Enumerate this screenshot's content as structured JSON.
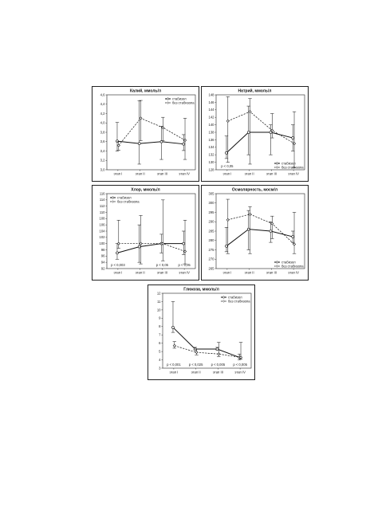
{
  "chart_data": [
    {
      "type": "line",
      "title": "Калий, ммоль/л",
      "categories": [
        "этап I",
        "этап II",
        "этап III",
        "этап IV"
      ],
      "ylim": [
        3.0,
        4.6
      ],
      "yticks": [
        "3,0",
        "3,2",
        "3,4",
        "3,6",
        "3,8",
        "4,0",
        "4,2",
        "4,4",
        "4,6"
      ],
      "legend_position": "top-right",
      "series": [
        {
          "name": "стабизол",
          "style": "solid",
          "marker": "circle",
          "values": [
            3.61,
            3.56,
            3.6,
            3.55
          ],
          "err_lo": [
            3.4,
            3.12,
            3.22,
            3.41
          ],
          "err_hi": [
            4.01,
            4.47,
            3.93,
            3.75
          ]
        },
        {
          "name": "без стабизола",
          "style": "dashed",
          "marker": "diamond",
          "values": [
            3.52,
            4.1,
            3.9,
            3.63
          ],
          "err_lo": [
            3.42,
            3.62,
            3.62,
            3.22
          ],
          "err_hi": [
            3.6,
            4.48,
            4.12,
            4.1
          ]
        }
      ],
      "annotations": []
    },
    {
      "type": "line",
      "title": "Натрий, ммоль/л",
      "categories": [
        "этап I",
        "этап II",
        "этап III",
        "этап IV"
      ],
      "ylim": [
        128,
        148
      ],
      "yticks": [
        "128",
        "130",
        "132",
        "134",
        "136",
        "138",
        "140",
        "142",
        "144",
        "146",
        "148"
      ],
      "legend_position": "bottom-right",
      "series": [
        {
          "name": "стабизол",
          "style": "solid",
          "marker": "circle",
          "values": [
            132.5,
            138,
            138,
            136.5
          ],
          "err_lo": [
            131,
            132,
            132,
            133
          ],
          "err_hi": [
            137,
            145,
            140,
            140
          ]
        },
        {
          "name": "без стабизола",
          "style": "dashed",
          "marker": "diamond",
          "values": [
            141,
            143.5,
            138.5,
            135
          ],
          "err_lo": [
            130,
            129.5,
            136.5,
            128.5
          ],
          "err_hi": [
            147.5,
            147,
            143,
            143.5
          ]
        }
      ],
      "annotations": [
        {
          "text": "p < 0,05",
          "category": 0
        }
      ]
    },
    {
      "type": "line",
      "title": "Хлор, ммоль/л",
      "categories": [
        "этап I",
        "этап II",
        "этап III",
        "этап IV"
      ],
      "ylim": [
        92,
        116
      ],
      "yticks": [
        "92",
        "94",
        "96",
        "98",
        "100",
        "102",
        "104",
        "106",
        "108",
        "110",
        "112",
        "114",
        "116"
      ],
      "legend_position": "top-left",
      "series": [
        {
          "name": "стабизол",
          "style": "solid",
          "marker": "circle",
          "values": [
            97,
            99,
            100,
            100
          ],
          "err_lo": [
            95,
            94,
            97,
            96.5
          ],
          "err_hi": [
            100,
            106,
            103,
            104
          ]
        },
        {
          "name": "без стабизола",
          "style": "dashed",
          "marker": "diamond",
          "values": [
            100,
            100,
            100,
            97.5
          ],
          "err_lo": [
            98.5,
            93.5,
            94.5,
            93.5
          ],
          "err_hi": [
            107.5,
            109,
            114,
            107.5
          ]
        }
      ],
      "annotations": [
        {
          "text": "p < 0,003",
          "category": 0
        },
        {
          "text": "p < 0,05",
          "category": 2
        },
        {
          "text": "p < 0,05",
          "category": 3
        }
      ]
    },
    {
      "type": "line",
      "title": "Осмолярность, мосм/л",
      "categories": [
        "этап I",
        "этап II",
        "этап III",
        "этап IV"
      ],
      "ylim": [
        265,
        305
      ],
      "yticks": [
        "265",
        "270",
        "275",
        "280",
        "285",
        "290",
        "295",
        "300",
        "305"
      ],
      "legend_position": "bottom-right",
      "series": [
        {
          "name": "стабизол",
          "style": "solid",
          "marker": "circle",
          "values": [
            277,
            286,
            285,
            282
          ],
          "err_lo": [
            274,
            275,
            279,
            279
          ],
          "err_hi": [
            287,
            296,
            290,
            285
          ]
        },
        {
          "name": "без стабизола",
          "style": "dashed",
          "marker": "diamond",
          "values": [
            291,
            294,
            289,
            278
          ],
          "err_lo": [
            273,
            273,
            281,
            273
          ],
          "err_hi": [
            302,
            298,
            293,
            295
          ]
        }
      ],
      "annotations": []
    },
    {
      "type": "line",
      "title": "Глюкоза, ммоль/л",
      "categories": [
        "этап I",
        "этап II",
        "этап III",
        "этап IV"
      ],
      "ylim": [
        3,
        12
      ],
      "yticks": [
        "3",
        "4",
        "5",
        "6",
        "7",
        "8",
        "9",
        "10",
        "11",
        "12"
      ],
      "legend_position": "top-right",
      "series": [
        {
          "name": "стабизол",
          "style": "solid",
          "marker": "circle",
          "values": [
            7.9,
            5.3,
            5.3,
            4.3
          ],
          "err_lo": [
            7.3,
            5.2,
            5.2,
            4.0
          ],
          "err_hi": [
            11.0,
            5.5,
            5.5,
            4.7
          ]
        },
        {
          "name": "без стабизола",
          "style": "dashed",
          "marker": "diamond",
          "values": [
            5.7,
            4.9,
            4.7,
            4.3
          ],
          "err_lo": [
            5.4,
            4.6,
            4.4,
            4.1
          ],
          "err_hi": [
            6.2,
            5.3,
            6.1,
            6.1
          ]
        }
      ],
      "annotations": [
        {
          "text": "p < 0,001",
          "category": 0
        },
        {
          "text": "p < 0,025",
          "category": 1
        },
        {
          "text": "p < 0,005",
          "category": 2
        },
        {
          "text": "p < 0,005",
          "category": 3
        }
      ]
    }
  ]
}
